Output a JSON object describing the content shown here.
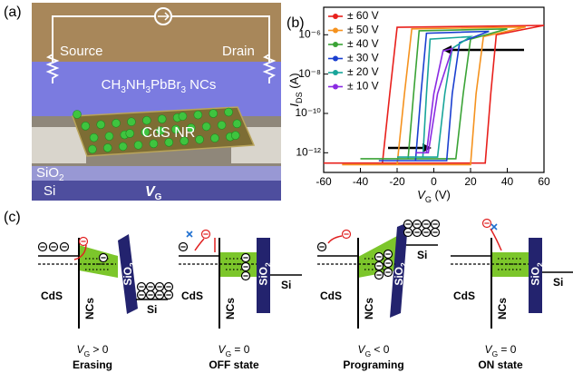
{
  "panel_labels": [
    "(a)",
    "(b)",
    "(c)"
  ],
  "device": {
    "source": "Source",
    "drain": "Drain",
    "perovskite": [
      "CH",
      "3",
      "NH",
      "3",
      "PbBr",
      "3",
      " NCs"
    ],
    "nanorod": "CdS NR",
    "oxide": [
      "SiO",
      "2"
    ],
    "substrate": "Si",
    "gate": [
      "V",
      "G"
    ]
  },
  "chart_data": {
    "type": "line",
    "log_y": true,
    "xlabel": [
      "V",
      "G",
      " (V)"
    ],
    "ylabel": [
      "I",
      "DS",
      " (A)"
    ],
    "xlim": [
      -60,
      60
    ],
    "xticks": [
      -60,
      -40,
      -20,
      0,
      20,
      40,
      60
    ],
    "ylim": [
      1e-13,
      2.5e-05
    ],
    "yticks": [
      {
        "value": 1e-12,
        "label": "10⁻¹²"
      },
      {
        "value": 1e-10,
        "label": "10⁻¹⁰"
      },
      {
        "value": 1e-08,
        "label": "10⁻⁸"
      },
      {
        "value": 1e-06,
        "label": "10⁻⁶"
      }
    ],
    "legend": "upper left",
    "series": [
      {
        "name": "± 60 V",
        "color": "#e8201c",
        "x": [
          -60,
          28,
          31,
          34,
          60,
          -20,
          -24,
          -28,
          -60
        ],
        "values": [
          3e-13,
          3e-13,
          1e-09,
          1e-06,
          3e-06,
          2.4e-06,
          1e-09,
          3e-13,
          3e-13
        ]
      },
      {
        "name": "± 50 V",
        "color": "#f5921e",
        "x": [
          -50,
          20,
          23,
          27,
          50,
          -12,
          -16,
          -20,
          -50
        ],
        "values": [
          2.5e-13,
          2.5e-13,
          1e-09,
          8e-07,
          2.5e-06,
          2e-06,
          1e-09,
          2.5e-13,
          2.5e-13
        ]
      },
      {
        "name": "± 40 V",
        "color": "#3aa335",
        "x": [
          -40,
          12,
          16,
          20,
          40,
          -8,
          -11,
          -14,
          -40
        ],
        "values": [
          5e-13,
          5e-13,
          1e-09,
          6e-07,
          2e-06,
          1.6e-06,
          1e-09,
          5e-13,
          5e-13
        ]
      },
      {
        "name": "± 30 V",
        "color": "#1a3fd0",
        "x": [
          -30,
          7,
          10,
          14,
          30,
          -4,
          -7,
          -10,
          -30
        ],
        "values": [
          4e-13,
          4e-13,
          1e-09,
          4e-07,
          1.5e-06,
          1.2e-06,
          1e-09,
          4e-13,
          4e-13
        ]
      },
      {
        "name": "± 20 V",
        "color": "#18a59a",
        "x": [
          -20,
          2,
          6,
          10,
          20,
          -2,
          -4,
          -6,
          -20
        ],
        "values": [
          6e-13,
          6e-13,
          1e-09,
          2e-07,
          8e-07,
          6e-07,
          1e-09,
          6e-13,
          6e-13
        ]
      },
      {
        "name": "± 10 V",
        "color": "#8a2be2",
        "x": [
          -10,
          -3,
          2,
          10,
          5,
          0,
          -4,
          -10
        ],
        "values": [
          1e-12,
          1e-12,
          1e-09,
          2e-07,
          1.5e-07,
          1e-09,
          1e-12,
          1e-12
        ]
      }
    ]
  },
  "diagrams": [
    {
      "cds": "CdS",
      "ncs": "NCs",
      "oxide": [
        "SiO",
        "2"
      ],
      "si": "Si",
      "condition": [
        "V",
        "G",
        " > 0"
      ],
      "state": "Erasing"
    },
    {
      "cds": "CdS",
      "ncs": "NCs",
      "oxide": [
        "SiO",
        "2"
      ],
      "si": "Si",
      "condition": [
        "V",
        "G",
        " = 0"
      ],
      "state": "OFF state"
    },
    {
      "cds": "CdS",
      "ncs": "NCs",
      "oxide": [
        "SiO",
        "2"
      ],
      "si": "Si",
      "condition": [
        "V",
        "G",
        " < 0"
      ],
      "state": "Programing"
    },
    {
      "cds": "CdS",
      "ncs": "NCs",
      "oxide": [
        "SiO",
        "2"
      ],
      "si": "Si",
      "condition": [
        "V",
        "G",
        " = 0"
      ],
      "state": "ON state"
    }
  ]
}
